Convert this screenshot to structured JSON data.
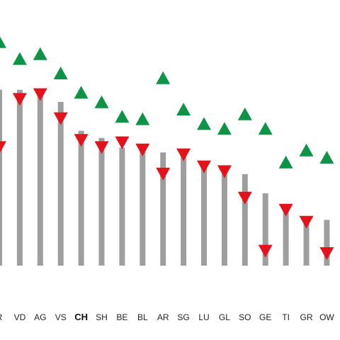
{
  "colors": {
    "bar": "#9e9e9e",
    "up": "#0f9447",
    "down": "#e3121b",
    "label": "#222222",
    "background": "#ffffff"
  },
  "chart_data": {
    "type": "bar",
    "title": "",
    "xlabel": "",
    "ylabel": "",
    "grid": false,
    "legend": "none",
    "ylim": [
      0,
      10
    ],
    "categories": [
      "R",
      "VD",
      "AG",
      "VS",
      "CH",
      "SH",
      "BE",
      "BL",
      "AR",
      "SG",
      "LU",
      "GL",
      "SO",
      "GE",
      "TI",
      "GR",
      "OW"
    ],
    "highlight": "CH",
    "series": [
      {
        "marker": "bar",
        "values": [
          7.3,
          7.3,
          7.2,
          6.8,
          5.6,
          5.3,
          4.9,
          4.8,
          4.7,
          4.6,
          4.3,
          4.0,
          3.8,
          3.0,
          2.5,
          2.0,
          1.9
        ]
      },
      {
        "marker": "triangle-up",
        "values": [
          9.3,
          8.6,
          8.8,
          8.0,
          7.2,
          6.8,
          6.2,
          6.1,
          7.8,
          6.5,
          5.9,
          5.7,
          6.3,
          5.7,
          4.3,
          4.8,
          4.5
        ]
      },
      {
        "marker": "triangle-down",
        "values": [
          4.9,
          6.9,
          7.1,
          6.1,
          5.2,
          4.9,
          5.1,
          4.8,
          3.8,
          4.6,
          4.1,
          3.9,
          2.8,
          0.6,
          2.3,
          1.8,
          0.5
        ]
      }
    ]
  }
}
